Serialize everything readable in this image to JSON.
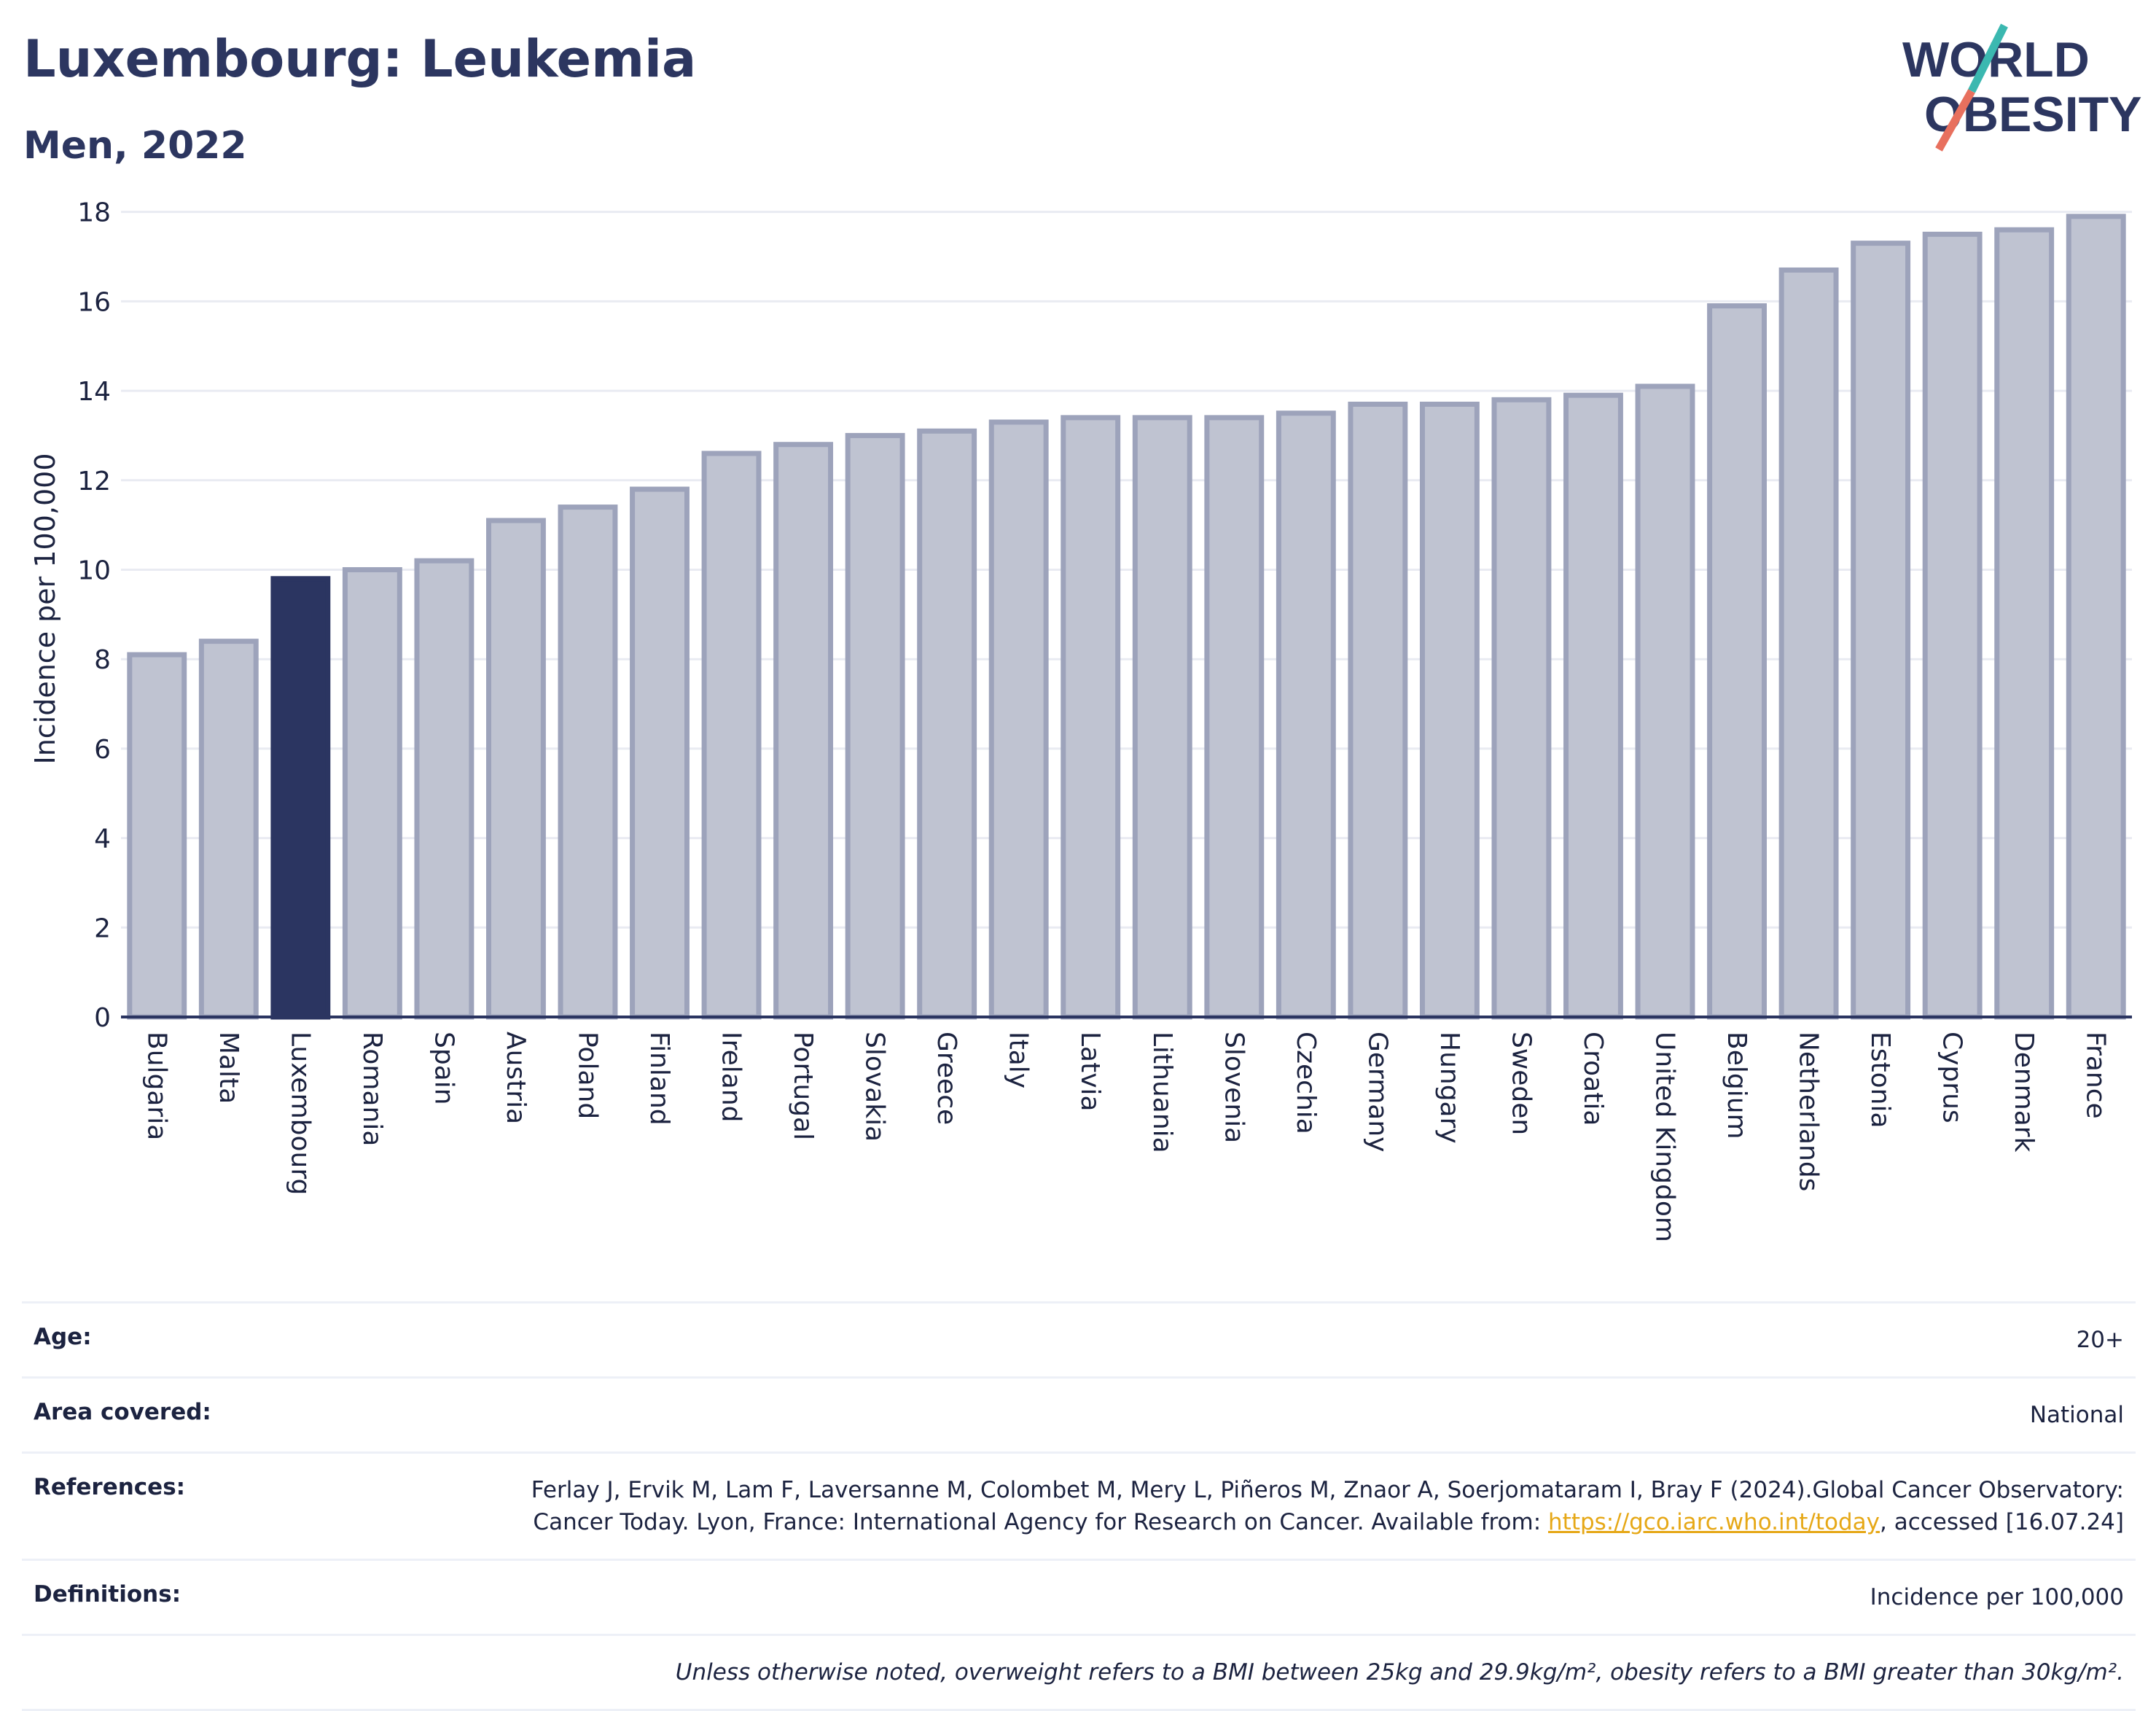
{
  "header": {
    "title": "Luxembourg: Leukemia",
    "subtitle": "Men, 2022"
  },
  "logo": {
    "line1": "WORLD",
    "line2": "OBESITY"
  },
  "colors": {
    "highlight": "#2b3561",
    "bar_fill": "#bfc3d1",
    "bar_stroke": "#9da3bb"
  },
  "chart_data": {
    "type": "bar",
    "categories": [
      "Bulgaria",
      "Malta",
      "Luxembourg",
      "Romania",
      "Spain",
      "Austria",
      "Poland",
      "Finland",
      "Ireland",
      "Portugal",
      "Slovakia",
      "Greece",
      "Italy",
      "Latvia",
      "Lithuania",
      "Slovenia",
      "Czechia",
      "Germany",
      "Hungary",
      "Sweden",
      "Croatia",
      "United Kingdom",
      "Belgium",
      "Netherlands",
      "Estonia",
      "Cyprus",
      "Denmark",
      "France"
    ],
    "values": [
      8.1,
      8.4,
      9.8,
      10.0,
      10.2,
      11.1,
      11.4,
      11.8,
      12.6,
      12.8,
      13.0,
      13.1,
      13.3,
      13.4,
      13.4,
      13.4,
      13.5,
      13.7,
      13.7,
      13.8,
      13.9,
      14.1,
      15.9,
      16.7,
      17.3,
      17.5,
      17.6,
      17.9
    ],
    "highlight": "Luxembourg",
    "ylabel": "Incidence per 100,000",
    "yticks": [
      0,
      2,
      4,
      6,
      8,
      10,
      12,
      14,
      16,
      18
    ],
    "ylim": [
      0,
      18.5
    ],
    "grid": true
  },
  "meta": {
    "age_label": "Age:",
    "age_value": "20+",
    "area_label": "Area covered:",
    "area_value": "National",
    "references_label": "References:",
    "references_text": "Ferlay J, Ervik M, Lam F, Laversanne M, Colombet M, Mery L, Piñeros M, Znaor A, Soerjomataram I, Bray F (2024).Global Cancer Observatory: Cancer Today. Lyon, France: International Agency for Research on Cancer. Available from: ",
    "references_link": "https://gco.iarc.who.int/today",
    "references_suffix": ", accessed [16.07.24]",
    "definitions_label": "Definitions:",
    "definitions_value": "Incidence per 100,000",
    "note": "Unless otherwise noted, overweight refers to a BMI between 25kg and 29.9kg/m², obesity refers to a BMI greater than 30kg/m²."
  }
}
